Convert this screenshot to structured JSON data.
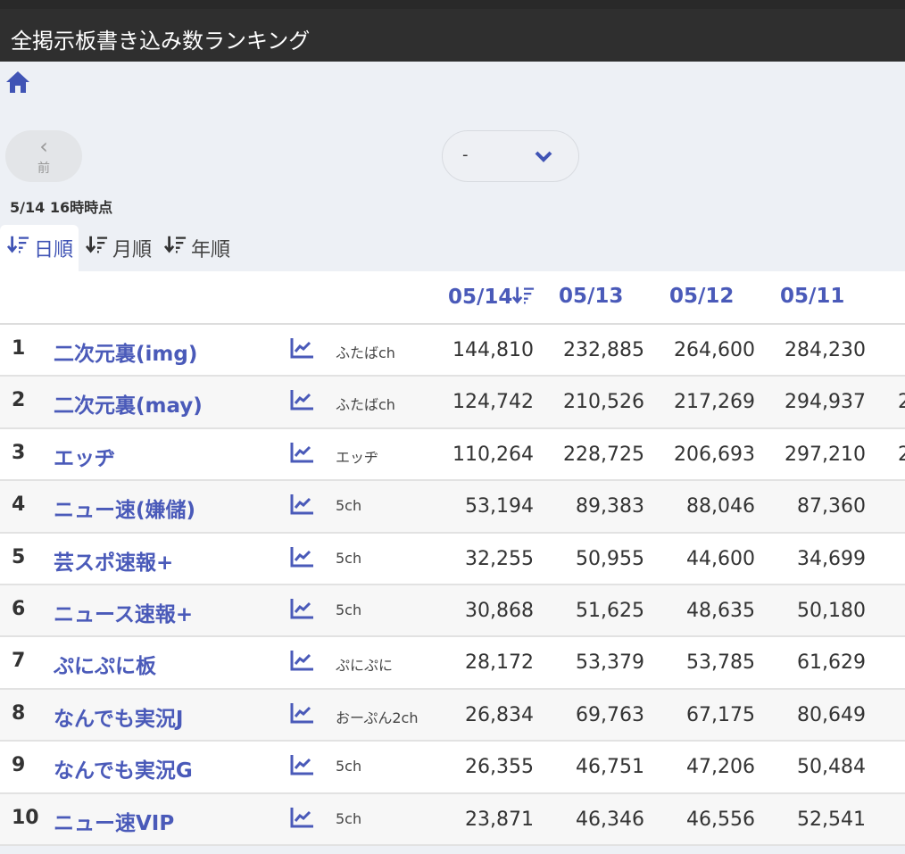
{
  "header": {
    "title": "全掲示板書き込み数ランキング"
  },
  "nav": {
    "home_icon": "home-icon",
    "prev_label": "前",
    "prev_icon": "chevron-left-icon"
  },
  "select": {
    "value": "-",
    "icon": "chevron-down-icon"
  },
  "timestamp": "5/14 16時時点",
  "tabs": [
    {
      "label": "日順",
      "active": true
    },
    {
      "label": "月順",
      "active": false
    },
    {
      "label": "年順",
      "active": false
    }
  ],
  "colors": {
    "accent": "#4a5ab9",
    "topbar": "#2f2f2f",
    "background": "#edf0f5"
  },
  "table": {
    "columns": [
      "05/14",
      "05/13",
      "05/12",
      "05/11",
      ""
    ],
    "rows": [
      {
        "rank": "1",
        "name": "二次元裏(img)",
        "source": "ふたばch",
        "values": [
          "144,810",
          "232,885",
          "264,600",
          "284,230",
          ""
        ]
      },
      {
        "rank": "2",
        "name": "二次元裏(may)",
        "source": "ふたばch",
        "values": [
          "124,742",
          "210,526",
          "217,269",
          "294,937",
          "2"
        ]
      },
      {
        "rank": "3",
        "name": "エッヂ",
        "source": "エッヂ",
        "values": [
          "110,264",
          "228,725",
          "206,693",
          "297,210",
          "2"
        ]
      },
      {
        "rank": "4",
        "name": "ニュー速(嫌儲)",
        "source": "5ch",
        "values": [
          "53,194",
          "89,383",
          "88,046",
          "87,360",
          ""
        ]
      },
      {
        "rank": "5",
        "name": "芸スポ速報+",
        "source": "5ch",
        "values": [
          "32,255",
          "50,955",
          "44,600",
          "34,699",
          ""
        ]
      },
      {
        "rank": "6",
        "name": "ニュース速報+",
        "source": "5ch",
        "values": [
          "30,868",
          "51,625",
          "48,635",
          "50,180",
          ""
        ]
      },
      {
        "rank": "7",
        "name": "ぷにぷに板",
        "source": "ぷにぷに",
        "values": [
          "28,172",
          "53,379",
          "53,785",
          "61,629",
          ""
        ]
      },
      {
        "rank": "8",
        "name": "なんでも実況J",
        "source": "おーぷん2ch",
        "values": [
          "26,834",
          "69,763",
          "67,175",
          "80,649",
          ""
        ]
      },
      {
        "rank": "9",
        "name": "なんでも実況G",
        "source": "5ch",
        "values": [
          "26,355",
          "46,751",
          "47,206",
          "50,484",
          ""
        ]
      },
      {
        "rank": "10",
        "name": "ニュー速VIP",
        "source": "5ch",
        "values": [
          "23,871",
          "46,346",
          "46,556",
          "52,541",
          ""
        ]
      }
    ]
  }
}
